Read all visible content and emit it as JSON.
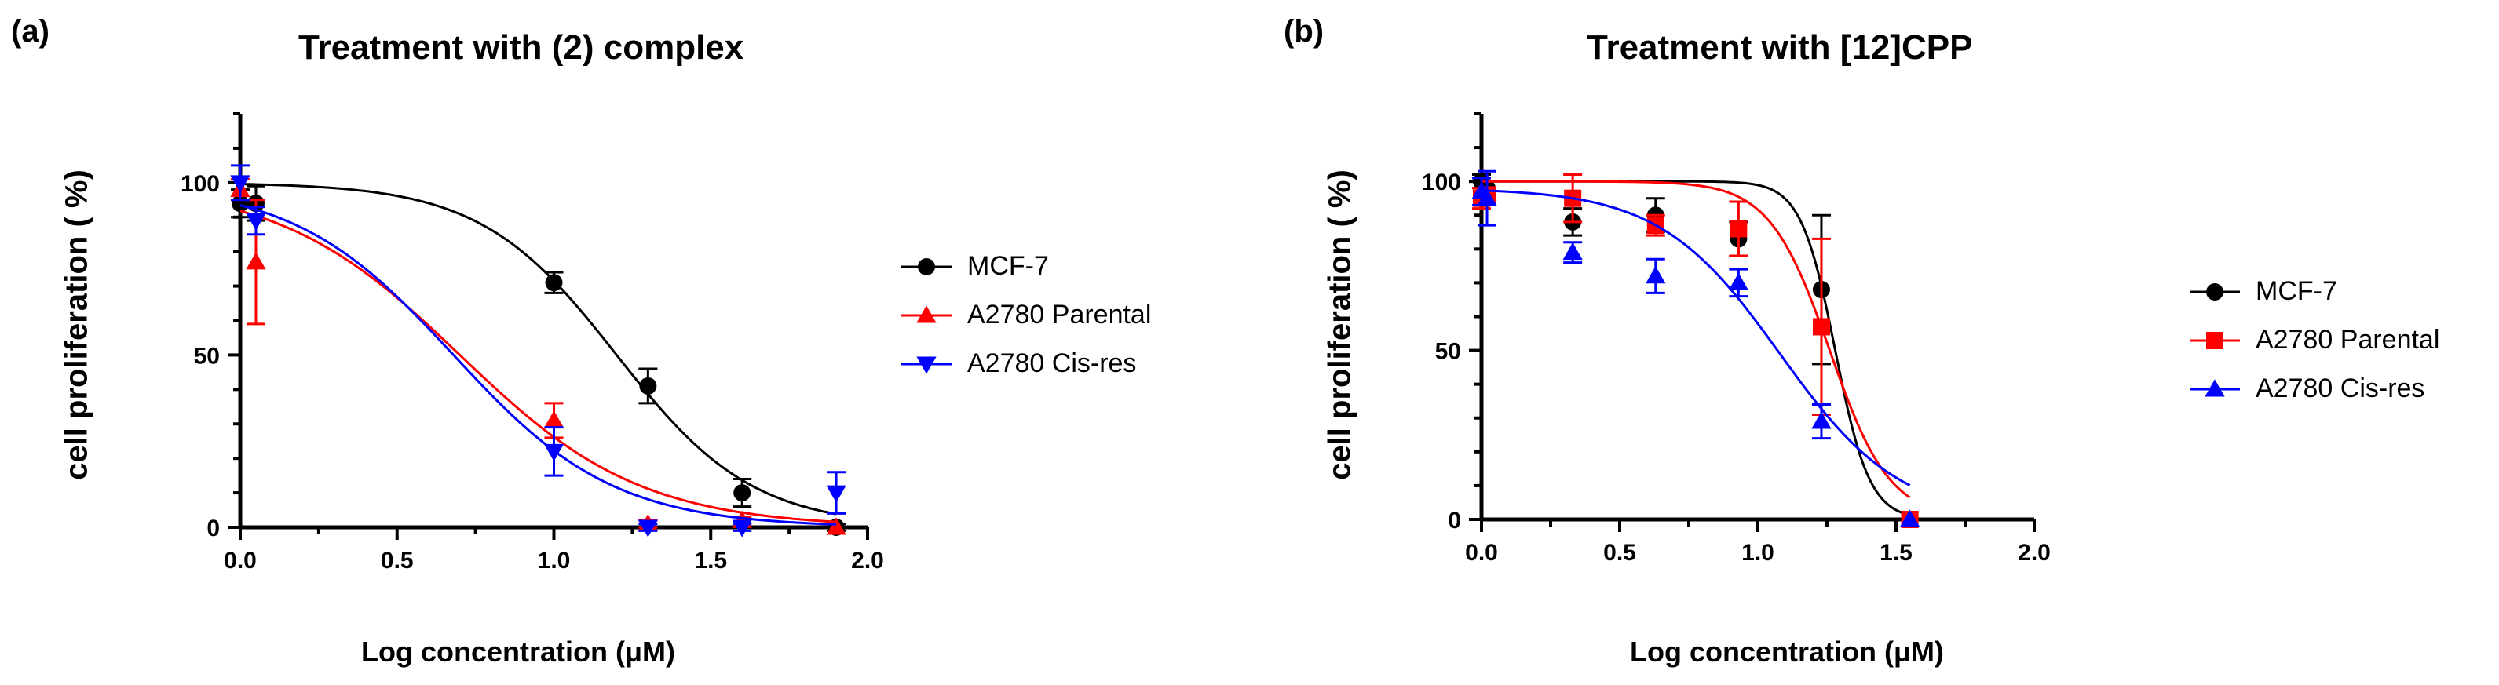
{
  "panels": [
    {
      "letter": "(a)",
      "title": "Treatment with (2) complex",
      "xlabel": "Log concentration (μM)",
      "ylabel": "cell proliferation ( %)",
      "legend": [
        {
          "name": "MCF-7",
          "color": "#000000",
          "marker": "circle"
        },
        {
          "name": "A2780 Parental",
          "color": "#ff0000",
          "marker": "triangle-up"
        },
        {
          "name": "A2780 Cis-res",
          "color": "#0000ff",
          "marker": "triangle-down"
        }
      ]
    },
    {
      "letter": "(b)",
      "title": "Treatment with [12]CPP",
      "xlabel": "Log concentration (μM)",
      "ylabel": "cell proliferation ( %)",
      "legend": [
        {
          "name": "MCF-7",
          "color": "#000000",
          "marker": "circle"
        },
        {
          "name": "A2780 Parental",
          "color": "#ff0000",
          "marker": "square"
        },
        {
          "name": "A2780 Cis-res",
          "color": "#0000ff",
          "marker": "triangle-up"
        }
      ]
    }
  ],
  "chart_data": [
    {
      "type": "scatter",
      "title": "Treatment with (2) complex",
      "xlabel": "Log concentration (μM)",
      "ylabel": "cell proliferation ( %)",
      "xlim": [
        0,
        2.0
      ],
      "ylim": [
        0,
        120
      ],
      "xticks": [
        "0.0",
        "0.5",
        "1.0",
        "1.5",
        "2.0"
      ],
      "yticks": [
        "0",
        "50",
        "100"
      ],
      "grid": false,
      "legend_position": "right",
      "fit_curves": true,
      "series": [
        {
          "name": "MCF-7",
          "color": "#000000",
          "marker": "circle",
          "x": [
            0.0,
            0.05,
            1.0,
            1.3,
            1.6,
            1.9
          ],
          "y": [
            94,
            94,
            71,
            41,
            10,
            0
          ],
          "err": [
            4,
            5,
            3,
            5,
            4,
            1
          ],
          "fit": {
            "top": 100,
            "bottom": 0,
            "logEC50": 1.2,
            "hill": 2.0
          }
        },
        {
          "name": "A2780 Parental",
          "color": "#ff0000",
          "marker": "triangle-up",
          "x": [
            0.0,
            0.05,
            1.0,
            1.3,
            1.6,
            1.9
          ],
          "y": [
            98,
            77,
            31,
            1,
            2,
            0
          ],
          "err": [
            3,
            18,
            5,
            1,
            1,
            0
          ],
          "fit": {
            "top": 100,
            "bottom": 0,
            "logEC50": 0.7,
            "hill": 1.5
          }
        },
        {
          "name": "A2780 Cis-res",
          "color": "#0000ff",
          "marker": "triangle-down",
          "x": [
            0.0,
            0.05,
            1.0,
            1.3,
            1.6,
            1.9
          ],
          "y": [
            100,
            89,
            22,
            0,
            0,
            10
          ],
          "err": [
            5,
            4,
            7,
            1,
            1,
            6
          ],
          "fit": {
            "top": 100,
            "bottom": 0,
            "logEC50": 0.68,
            "hill": 1.7
          }
        }
      ]
    },
    {
      "type": "scatter",
      "title": "Treatment with [12]CPP",
      "xlabel": "Log concentration (μM)",
      "ylabel": "cell proliferation ( %)",
      "xlim": [
        0,
        2.0
      ],
      "ylim": [
        0,
        120
      ],
      "xticks": [
        "0.0",
        "0.5",
        "1.0",
        "1.5",
        "2.0"
      ],
      "yticks": [
        "0",
        "50",
        "100"
      ],
      "grid": false,
      "legend_position": "right",
      "fit_curves": true,
      "series": [
        {
          "name": "MCF-7",
          "color": "#000000",
          "marker": "circle",
          "x": [
            0.0,
            0.02,
            0.33,
            0.63,
            0.93,
            1.23,
            1.55
          ],
          "y": [
            100,
            98,
            88,
            90,
            83,
            68,
            0
          ],
          "err": [
            2,
            2,
            4,
            5,
            5,
            22,
            0
          ],
          "fit": {
            "top": 100,
            "bottom": 0,
            "logEC50": 1.28,
            "hill": 7.0
          }
        },
        {
          "name": "A2780 Parental",
          "color": "#ff0000",
          "marker": "square",
          "x": [
            0.0,
            0.02,
            0.33,
            0.63,
            0.93,
            1.23,
            1.55
          ],
          "y": [
            95,
            96,
            95,
            87,
            86,
            57,
            0
          ],
          "err": [
            3,
            2,
            7,
            3,
            8,
            26,
            0
          ],
          "fit": {
            "top": 100,
            "bottom": 0,
            "logEC50": 1.26,
            "hill": 4.0
          }
        },
        {
          "name": "A2780 Cis-res",
          "color": "#0000ff",
          "marker": "triangle-up",
          "x": [
            0.0,
            0.02,
            0.33,
            0.63,
            0.93,
            1.23,
            1.55
          ],
          "y": [
            97,
            95,
            79,
            72,
            70,
            29,
            0
          ],
          "err": [
            4,
            8,
            3,
            5,
            4,
            5,
            0
          ],
          "fit": {
            "top": 98,
            "bottom": 0,
            "logEC50": 1.08,
            "hill": 2.0
          }
        }
      ]
    }
  ]
}
